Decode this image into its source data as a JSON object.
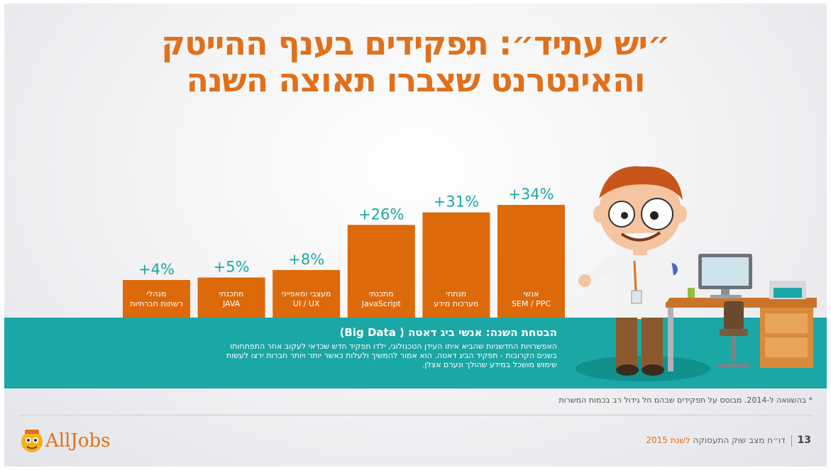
{
  "title": {
    "line1": "״יש עתיד״:  תפקידים בענף ההייטק",
    "line2": "והאינטרנט שצברו תאוצה השנה"
  },
  "chart_data": {
    "type": "bar",
    "categories": [
      [
        "מנהלי",
        "רשתות חברתיות"
      ],
      [
        "מתכנתי",
        "JAVA"
      ],
      [
        "מעצבי ומאפייני",
        "UI / UX"
      ],
      [
        "מתכנתי",
        "JavaScript"
      ],
      [
        "מנתחי",
        "מערכות מידע"
      ],
      [
        "אנשי",
        "SEM / PPC"
      ]
    ],
    "values": [
      4,
      5,
      8,
      26,
      31,
      34
    ],
    "labels": [
      "+4%",
      "+5%",
      "+8%",
      "+26%",
      "+31%",
      "+34%"
    ],
    "bar_color": "#dd6a0a",
    "label_color": "#1aa7a5"
  },
  "highlight": {
    "heading": "הבטחת השנה: אנשי ביג דאטה ( Big Data)",
    "body": "האפשרויות החדשניות שהביא איתו העידן הטכנולוגי, ילדו תפקיד חדש שכדאי לעקוב אחר התפתחותו בשנים הקרובות - תפקיד הביג דאטה. הוא אמור להמשיך ולעלות כאשר יותר ויותר חברות ירצו לעשות שימוש מושכל במידע שהולך ונערם אצלן."
  },
  "footnote": "* בהשוואה ל-2014. מבוסס על תפקידים שבהם חל גידול רב בכמות המשרות",
  "footer": {
    "page": "13",
    "report": "דו״ח מצב שוק התעסוקה",
    "year": "לשנת 2015"
  },
  "logo": {
    "text": "AllJobs"
  },
  "colors": {
    "orange": "#e0701a",
    "teal": "#1aa7a5"
  }
}
